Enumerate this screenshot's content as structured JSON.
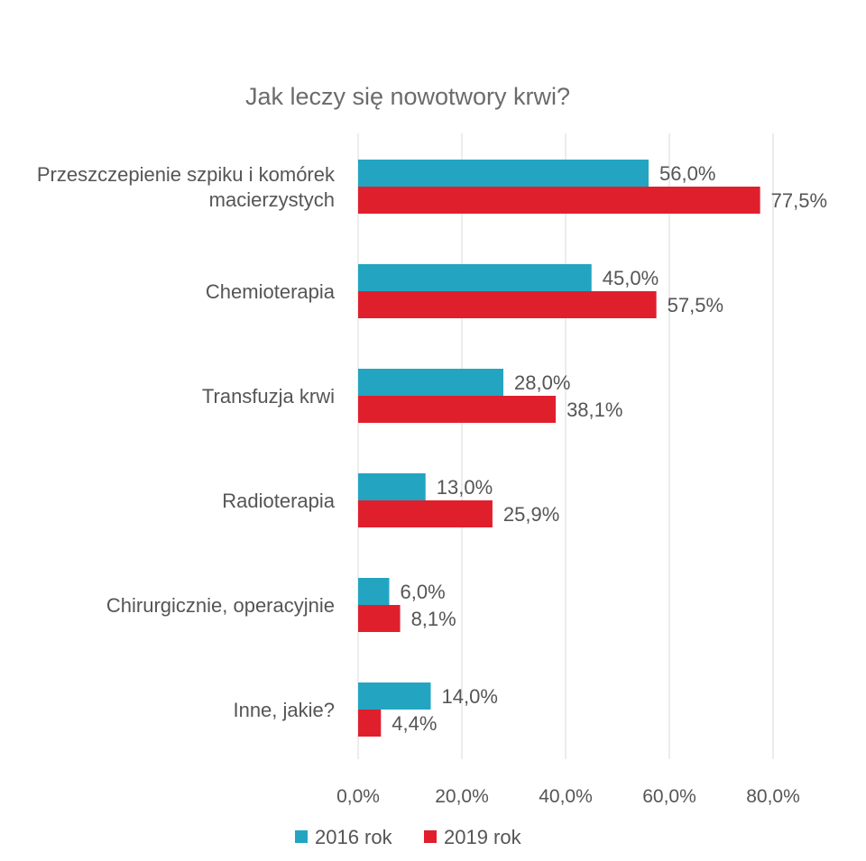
{
  "chart_data": {
    "type": "bar",
    "orientation": "horizontal",
    "title": "Jak leczy się nowotwory krwi?",
    "categories": [
      [
        "Przeszczepienie szpiku i komórek",
        "macierzystych"
      ],
      [
        "Chemioterapia"
      ],
      [
        "Transfuzja krwi"
      ],
      [
        "Radioterapia"
      ],
      [
        "Chirurgicznie, operacyjnie"
      ],
      [
        "Inne, jakie?"
      ]
    ],
    "series": [
      {
        "name": "2016 rok",
        "color": "#23a5c2",
        "values": [
          56.0,
          45.0,
          28.0,
          13.0,
          6.0,
          14.0
        ],
        "labels": [
          "56,0%",
          "45,0%",
          "28,0%",
          "13,0%",
          "6,0%",
          "14,0%"
        ]
      },
      {
        "name": "2019 rok",
        "color": "#e01f2d",
        "values": [
          77.5,
          57.5,
          38.1,
          25.9,
          8.1,
          4.4
        ],
        "labels": [
          "77,5%",
          "57,5%",
          "38,1%",
          "25,9%",
          "8,1%",
          "4,4%"
        ]
      }
    ],
    "xlim": [
      0,
      80
    ],
    "xticks": [
      0,
      20,
      40,
      60,
      80
    ],
    "xtick_labels": [
      "0,0%",
      "20,0%",
      "40,0%",
      "60,0%",
      "80,0%"
    ],
    "grid": true,
    "legend_position": "bottom-center"
  }
}
